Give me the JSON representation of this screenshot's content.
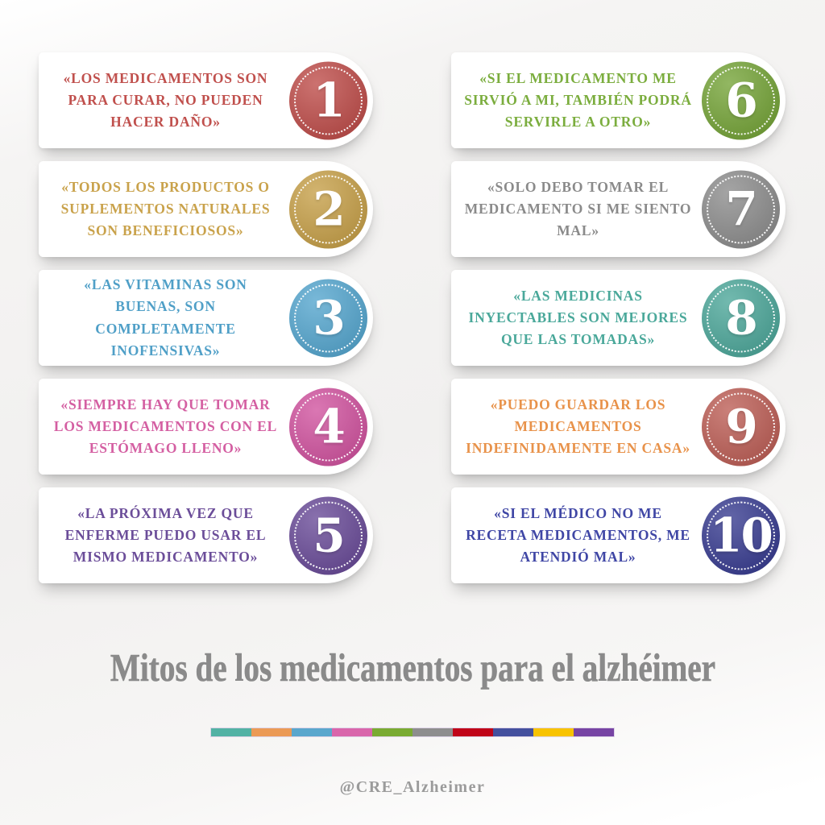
{
  "page": {
    "title": "Mitos de los medicamentos para el alzhéimer",
    "credit": "@CRE_Alzheimer",
    "background_color": "#f1f0ef",
    "title_color": "#8a8a8a"
  },
  "cards": [
    {
      "number": "1",
      "text": "«LOS MEDICAMENTOS SON PARA CURAR, NO PUEDEN HACER DAÑO»",
      "text_color": "#c0504d",
      "badge_color": "#bf4f4c"
    },
    {
      "number": "2",
      "text": "«TODOS LOS PRODUCTOS O SUPLEMENTOS NATURALES SON BENEFICIOSOS»",
      "text_color": "#c9a24b",
      "badge_color": "#c7a14b"
    },
    {
      "number": "3",
      "text": "«LAS VITAMINAS SON BUENAS, SON COMPLETAMENTE INOFENSIVAS»",
      "text_color": "#4f9fc7",
      "badge_color": "#57a7cf"
    },
    {
      "number": "4",
      "text": "«SIEMPRE HAY QUE TOMAR LOS MEDICAMENTOS CON EL ESTÓMAGO LLENO»",
      "text_color": "#d45fa2",
      "badge_color": "#d155a0"
    },
    {
      "number": "5",
      "text": "«LA PRÓXIMA VEZ QUE ENFERME PUEDO USAR EL MISMO MEDICAMENTO»",
      "text_color": "#6b4d99",
      "badge_color": "#6b4d99"
    },
    {
      "number": "6",
      "text": "«SI EL MEDICAMENTO ME SIRVIÓ A MI, TAMBIÉN PODRÁ SERVIRLE A OTRO»",
      "text_color": "#7bad3e",
      "badge_color": "#77a53b"
    },
    {
      "number": "7",
      "text": "«SOLO DEBO TOMAR EL MEDICAMENTO SI ME SIENTO MAL»",
      "text_color": "#8a8a8a",
      "badge_color": "#8e8e8e"
    },
    {
      "number": "8",
      "text": "«LAS MEDICINAS INYECTABLES SON MEJORES QUE LAS TOMADAS»",
      "text_color": "#4aa89a",
      "badge_color": "#4fa89b"
    },
    {
      "number": "9",
      "text": "«PUEDO GUARDAR LOS MEDICAMENTOS INDEFINIDAMENTE EN CASA»",
      "text_color": "#e8924a",
      "badge_color": "#bd6058"
    },
    {
      "number": "10",
      "text": "«SI EL MÉDICO NO ME RECETA MEDICAMENTOS, ME ATENDIÓ MAL»",
      "text_color": "#3f46a5",
      "badge_color": "#3b3f92"
    }
  ],
  "divider_colors": [
    "#52b2a4",
    "#eb9a55",
    "#5aa7cd",
    "#d966ab",
    "#7aab32",
    "#8e8e8e",
    "#c00418",
    "#44509e",
    "#f8c301",
    "#7744a4"
  ]
}
